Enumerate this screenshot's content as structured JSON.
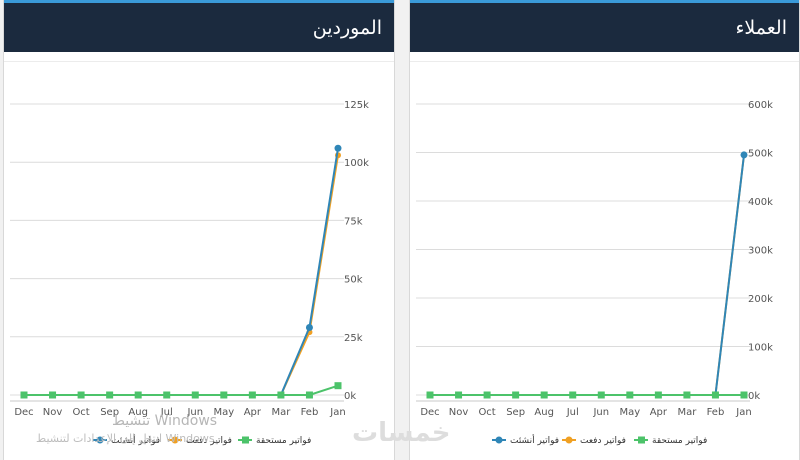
{
  "panels": {
    "suppliers": {
      "title": "الموردين"
    },
    "customers": {
      "title": "العملاء"
    }
  },
  "watermark": {
    "line1": "تنشيط Windows",
    "line2": "انتقل إلى الإعدادات لتنشيط Windows."
  },
  "logo_text": "خمسات",
  "colors": {
    "header_bg": "#1b2a3e",
    "header_accent": "#3a9ad9",
    "created": "#2f86b7",
    "paid": "#f0a023",
    "due": "#4cc36a"
  },
  "chart_data": [
    {
      "type": "line",
      "title": "الموردين",
      "categories": [
        "Dec",
        "Nov",
        "Oct",
        "Sep",
        "Aug",
        "Jul",
        "Jun",
        "May",
        "Apr",
        "Mar",
        "Feb",
        "Jan"
      ],
      "ylim": [
        0,
        125000
      ],
      "yticks": [
        "0k",
        "25k",
        "50k",
        "75k",
        "100k",
        "125k"
      ],
      "yticks_values": [
        0,
        25000,
        50000,
        75000,
        100000,
        125000
      ],
      "grid": true,
      "legend": "bottom",
      "series": [
        {
          "name": "فواتير أنشئت",
          "color": "#2f86b7",
          "values": [
            0,
            0,
            0,
            0,
            0,
            0,
            0,
            0,
            0,
            0,
            29000,
            106000
          ]
        },
        {
          "name": "فواتير دفعت",
          "color": "#f0a023",
          "values": [
            0,
            0,
            0,
            0,
            0,
            0,
            0,
            0,
            0,
            0,
            27000,
            103000
          ]
        },
        {
          "name": "فواتير مستحقة",
          "color": "#4cc36a",
          "values": [
            0,
            0,
            0,
            0,
            0,
            0,
            0,
            0,
            0,
            0,
            0,
            4000
          ]
        }
      ]
    },
    {
      "type": "line",
      "title": "العملاء",
      "categories": [
        "Dec",
        "Nov",
        "Oct",
        "Sep",
        "Aug",
        "Jul",
        "Jun",
        "May",
        "Apr",
        "Mar",
        "Feb",
        "Jan"
      ],
      "ylim": [
        0,
        600000
      ],
      "yticks": [
        "0k",
        "100k",
        "200k",
        "300k",
        "400k",
        "500k",
        "600k"
      ],
      "yticks_values": [
        0,
        100000,
        200000,
        300000,
        400000,
        500000,
        600000
      ],
      "grid": true,
      "legend": "bottom",
      "series": [
        {
          "name": "فواتير أنشئت",
          "color": "#2f86b7",
          "values": [
            0,
            0,
            0,
            0,
            0,
            0,
            0,
            0,
            0,
            0,
            0,
            495000
          ]
        },
        {
          "name": "فواتير دفعت",
          "color": "#f0a023",
          "values": [
            0,
            0,
            0,
            0,
            0,
            0,
            0,
            0,
            0,
            0,
            0,
            495000
          ]
        },
        {
          "name": "فواتير مستحقة",
          "color": "#4cc36a",
          "values": [
            0,
            0,
            0,
            0,
            0,
            0,
            0,
            0,
            0,
            0,
            0,
            0
          ]
        }
      ]
    }
  ]
}
